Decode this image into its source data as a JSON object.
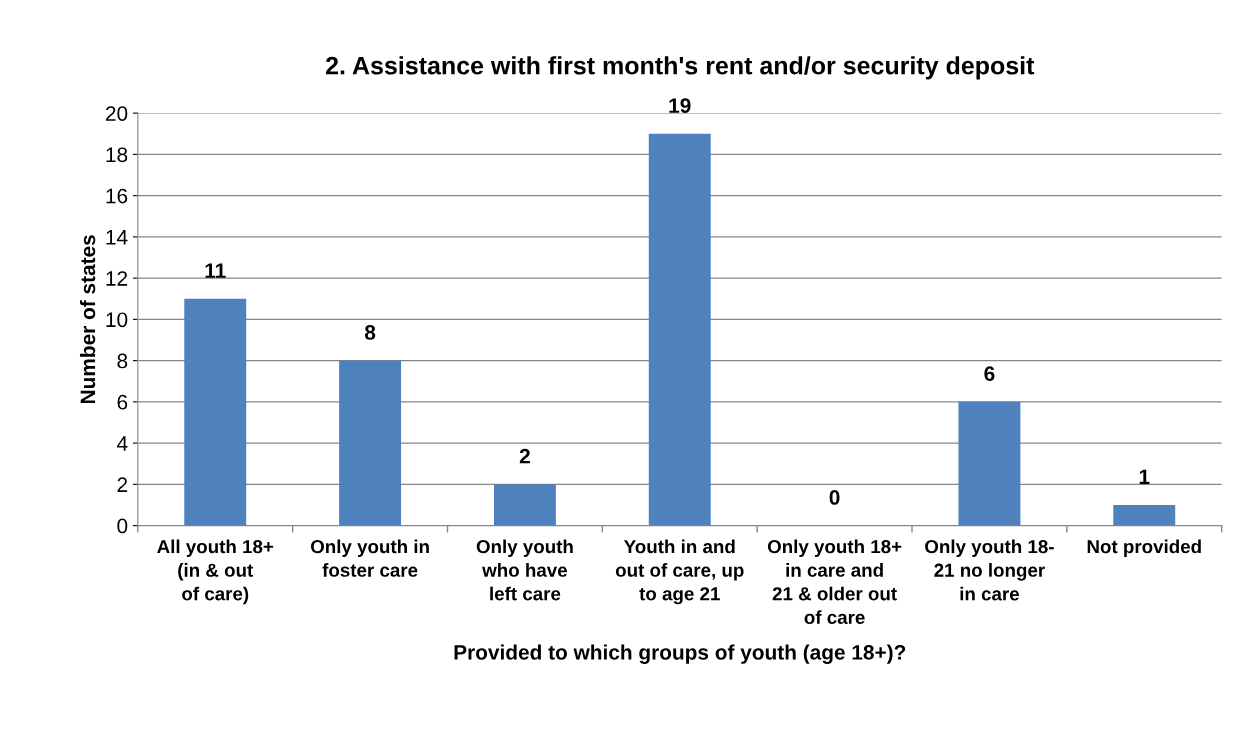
{
  "chart_data": {
    "type": "bar",
    "title": "2. Assistance with first month's rent and/or security deposit",
    "xlabel": "Provided to which groups of youth (age 18+)?",
    "ylabel": "Number of states",
    "categories": [
      "All youth 18+\n(in & out\nof care)",
      "Only youth in\nfoster care",
      "Only youth\nwho have\nleft care",
      "Youth in and\nout of care, up\nto age 21",
      "Only youth 18+\nin care and\n21 & older out\nof care",
      "Only youth 18-\n21 no longer\nin care",
      "Not provided"
    ],
    "values": [
      11,
      8,
      2,
      19,
      0,
      6,
      1
    ],
    "color": "#4f81bd",
    "ylim": [
      0,
      20
    ],
    "yticks": [
      0,
      2,
      4,
      6,
      8,
      10,
      12,
      14,
      16,
      18,
      20
    ],
    "grid": "y",
    "data_labels": true
  }
}
